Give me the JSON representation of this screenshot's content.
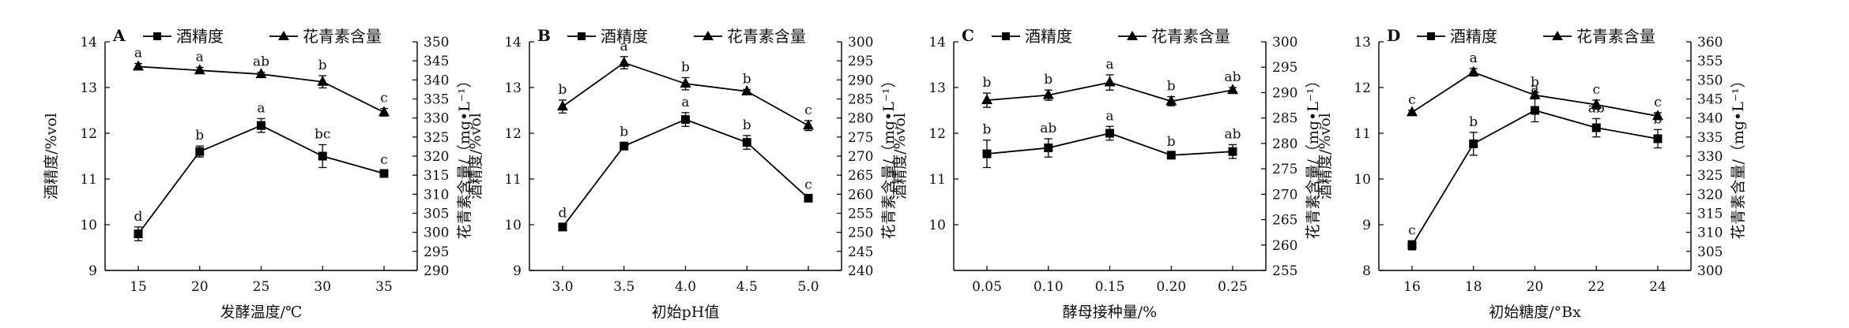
{
  "legend": {
    "alcohol": "酒精度",
    "anthocyanin": "花青素含量"
  },
  "chart_data": [
    {
      "type": "line",
      "panel": "A",
      "xlabel": "发酵温度/℃",
      "ylabel_left": "酒精度/%vol",
      "ylabel_right": "花青素含量/（mg•L⁻¹）",
      "x": [
        "15",
        "20",
        "25",
        "30",
        "35"
      ],
      "ylim_left": [
        9,
        14
      ],
      "yticks_left": [
        9,
        10,
        11,
        12,
        13,
        14
      ],
      "ylim_right": [
        290,
        350
      ],
      "yticks_right": [
        290,
        295,
        300,
        305,
        310,
        315,
        320,
        325,
        330,
        335,
        340,
        345,
        350
      ],
      "series": [
        {
          "name": "酒精度",
          "marker": "square",
          "axis": "left",
          "values": [
            9.8,
            11.6,
            12.17,
            11.5,
            11.12
          ],
          "errors": [
            0.15,
            0.12,
            0.15,
            0.25,
            0.07
          ],
          "letters": [
            "d",
            "b",
            "a",
            "bc",
            "c"
          ]
        },
        {
          "name": "花青素含量",
          "marker": "triangle",
          "axis": "right",
          "values": [
            343.5,
            342.5,
            341.5,
            339.5,
            331.5
          ],
          "errors": [
            0.8,
            0.8,
            0.5,
            1.6,
            1.0
          ],
          "letters": [
            "a",
            "a",
            "ab",
            "b",
            "c"
          ]
        }
      ]
    },
    {
      "type": "line",
      "panel": "B",
      "xlabel": "初始pH值",
      "ylabel_left": "酒精度/%vol",
      "ylabel_right": "花青素含量/（mg•L⁻¹）",
      "x": [
        "3.0",
        "3.5",
        "4.0",
        "4.5",
        "5.0"
      ],
      "ylim_left": [
        9,
        14
      ],
      "yticks_left": [
        9,
        10,
        11,
        12,
        13,
        14
      ],
      "ylim_right": [
        240,
        300
      ],
      "yticks_right": [
        240,
        245,
        250,
        255,
        260,
        265,
        270,
        275,
        280,
        285,
        290,
        295,
        300
      ],
      "series": [
        {
          "name": "酒精度",
          "marker": "square",
          "axis": "left",
          "values": [
            9.95,
            11.72,
            12.3,
            11.8,
            10.58
          ],
          "errors": [
            0.08,
            0.08,
            0.15,
            0.15,
            0.07
          ],
          "letters": [
            "d",
            "b",
            "a",
            "b",
            "c"
          ]
        },
        {
          "name": "花青素含量",
          "marker": "triangle",
          "axis": "right",
          "values": [
            283,
            294.5,
            289,
            287,
            278
          ],
          "errors": [
            1.7,
            1.6,
            1.6,
            0.5,
            1.3
          ],
          "letters": [
            "b",
            "a",
            "b",
            "b",
            "c"
          ]
        }
      ]
    },
    {
      "type": "line",
      "panel": "C",
      "xlabel": "酵母接种量/%",
      "ylabel_left": "酒精度/%vol",
      "ylabel_right": "花青素含量/（mg•L⁻¹）",
      "x": [
        "0.05",
        "0.10",
        "0.15",
        "0.20",
        "0.25"
      ],
      "ylim_left": [
        9,
        14
      ],
      "yticks_left": [
        10,
        11,
        12,
        13,
        14
      ],
      "ylim_right": [
        255,
        300
      ],
      "yticks_right": [
        255,
        260,
        265,
        270,
        275,
        280,
        285,
        290,
        295,
        300
      ],
      "series": [
        {
          "name": "酒精度",
          "marker": "square",
          "axis": "left",
          "values": [
            11.55,
            11.68,
            12.0,
            11.52,
            11.6
          ],
          "errors": [
            0.3,
            0.2,
            0.15,
            0.07,
            0.15
          ],
          "letters": [
            "b",
            "ab",
            "a",
            "b",
            "ab"
          ]
        },
        {
          "name": "花青素含量",
          "marker": "triangle",
          "axis": "right",
          "values": [
            288.5,
            289.5,
            292,
            288.3,
            290.5
          ],
          "errors": [
            1.4,
            1.0,
            1.5,
            0.9,
            0.5
          ],
          "letters": [
            "b",
            "b",
            "a",
            "b",
            "ab"
          ]
        }
      ]
    },
    {
      "type": "line",
      "panel": "D",
      "xlabel": "初始糖度/°Bx",
      "ylabel_left": "酒精度/%vol",
      "ylabel_right": "花青素含量/（mg•L⁻¹）",
      "x": [
        "16",
        "18",
        "20",
        "22",
        "24"
      ],
      "ylim_left": [
        8,
        13
      ],
      "yticks_left": [
        8,
        9,
        10,
        11,
        12,
        13
      ],
      "ylim_right": [
        300,
        360
      ],
      "yticks_right": [
        300,
        305,
        310,
        315,
        320,
        325,
        330,
        335,
        340,
        345,
        350,
        355,
        360
      ],
      "series": [
        {
          "name": "酒精度",
          "marker": "square",
          "axis": "left",
          "values": [
            8.55,
            10.77,
            11.5,
            11.12,
            10.88
          ],
          "errors": [
            0.1,
            0.25,
            0.25,
            0.2,
            0.2
          ],
          "letters": [
            "c",
            "b",
            "a",
            "ab",
            "b"
          ]
        },
        {
          "name": "花青素含量",
          "marker": "triangle",
          "axis": "right",
          "values": [
            341.5,
            352,
            346,
            343.5,
            340.5
          ],
          "errors": [
            0.5,
            1.0,
            0.7,
            1.2,
            0.9
          ],
          "letters": [
            "c",
            "a",
            "b",
            "c",
            "c"
          ]
        }
      ]
    }
  ]
}
